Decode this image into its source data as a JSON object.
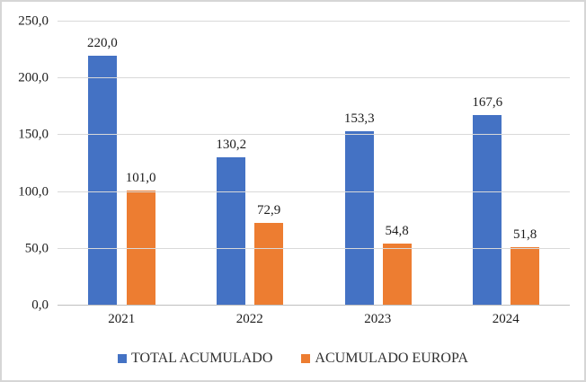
{
  "chart_data": {
    "type": "bar",
    "title": "",
    "xlabel": "",
    "ylabel": "",
    "categories": [
      "2021",
      "2022",
      "2023",
      "2024"
    ],
    "series": [
      {
        "name": "TOTAL ACUMULADO",
        "color": "#4472C4",
        "values": [
          220.0,
          130.2,
          153.3,
          167.6
        ],
        "labels": [
          "220,0",
          "130,2",
          "153,3",
          "167,6"
        ]
      },
      {
        "name": "ACUMULADO EUROPA",
        "color": "#ED7D31",
        "values": [
          101.0,
          72.9,
          54.8,
          51.8
        ],
        "labels": [
          "101,0",
          "72,9",
          "54,8",
          "51,8"
        ]
      }
    ],
    "y_axis": {
      "min": 0,
      "max": 250,
      "step": 50,
      "tick_labels": [
        "0,0",
        "50,0",
        "100,0",
        "150,0",
        "200,0",
        "250,0"
      ]
    },
    "grid": true,
    "legend_position": "bottom",
    "colors": {
      "gridline": "#d9d9d9",
      "axis_line": "#bfbfbf",
      "text": "#1c1c1c",
      "frame_border": "#d6d6d6",
      "background": "#ffffff"
    }
  }
}
